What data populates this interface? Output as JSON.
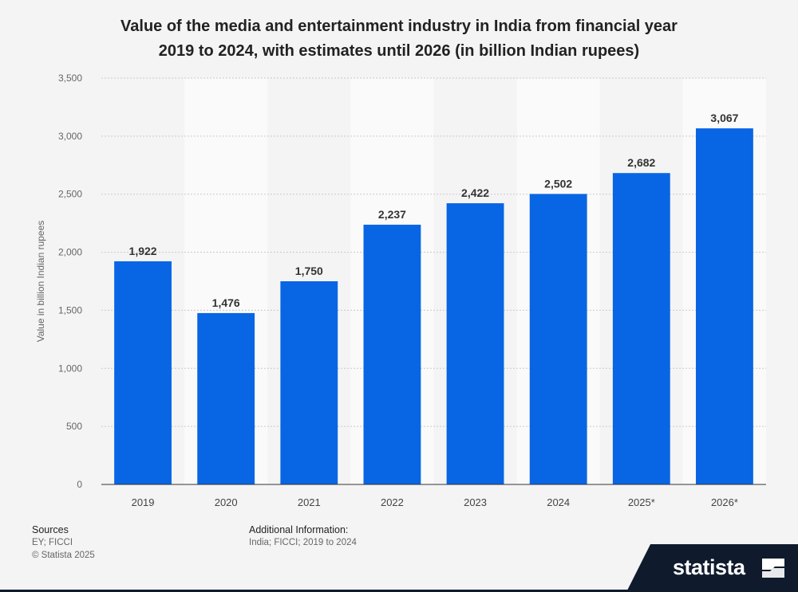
{
  "title_line1": "Value of the media and entertainment industry in India from financial year",
  "title_line2": "2019 to 2024, with estimates until 2026 (in billion Indian rupees)",
  "footer": {
    "sources_label": "Sources",
    "sources_text": "EY; FICCI",
    "copyright": "© Statista 2025",
    "additional_label": "Additional Information:",
    "additional_text": "India; FICCI; 2019 to 2024"
  },
  "brand": {
    "name": "statista"
  },
  "colors": {
    "bar": "#0866e4",
    "grid": "#c9c9c9",
    "band": "#fafafa"
  },
  "chart_data": {
    "type": "bar",
    "title": "Value of the media and entertainment industry in India from financial year 2019 to 2024, with estimates until 2026 (in billion Indian rupees)",
    "categories": [
      "2019",
      "2020",
      "2021",
      "2022",
      "2023",
      "2024",
      "2025*",
      "2026*"
    ],
    "values": [
      1922,
      1476,
      1750,
      2237,
      2422,
      2502,
      2682,
      3067
    ],
    "value_labels": [
      "1,922",
      "1,476",
      "1,750",
      "2,237",
      "2,422",
      "2,502",
      "2,682",
      "3,067"
    ],
    "ylabel": "Value in billion Indian rupees",
    "xlabel": "",
    "ylim": [
      0,
      3500
    ],
    "yticks": [
      0,
      500,
      1000,
      1500,
      2000,
      2500,
      3000,
      3500
    ],
    "ytick_labels": [
      "0",
      "500",
      "1,000",
      "1,500",
      "2,000",
      "2,500",
      "3,000",
      "3,500"
    ],
    "grid": true
  }
}
